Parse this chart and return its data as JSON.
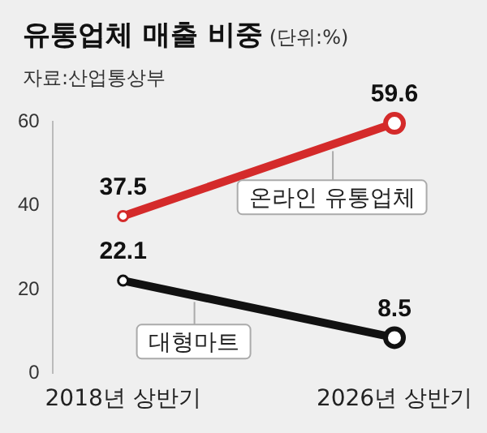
{
  "chart_data": {
    "type": "line",
    "title": "유통업체 매출 비중",
    "subtitle": "(단위:%)",
    "annotations": [
      "자료:산업통상부"
    ],
    "categories": [
      "2018년 상반기",
      "2026년 상반기"
    ],
    "series": [
      {
        "name": "온라인 유통업체",
        "color": "#d42a2a",
        "values": [
          37.5,
          59.6
        ]
      },
      {
        "name": "대형마트",
        "color": "#111111",
        "values": [
          22.1,
          8.5
        ]
      }
    ],
    "ylim": [
      0,
      60
    ],
    "yticks": [
      0,
      20,
      40,
      60
    ],
    "data_labels": true,
    "marker": "circle",
    "line_style": "solid",
    "grid": false,
    "legend": false
  }
}
